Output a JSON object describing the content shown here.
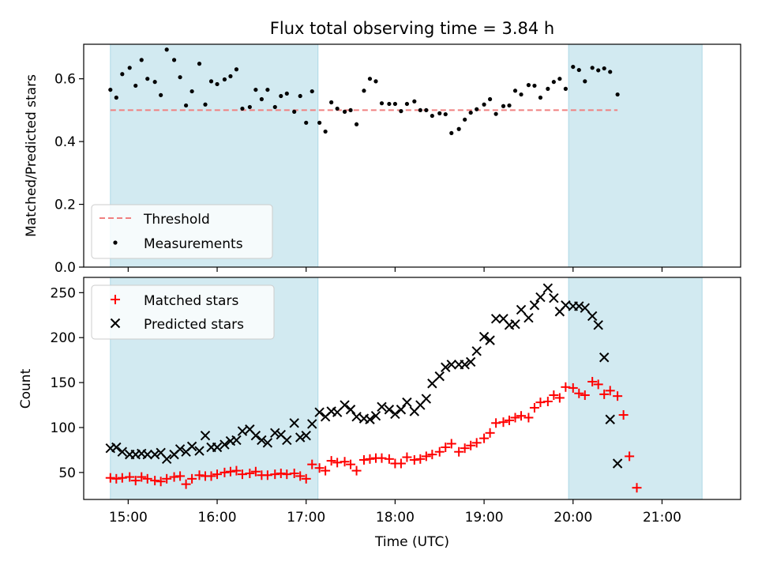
{
  "chart_data": [
    {
      "type": "scatter",
      "title": "Flux total observing time = 3.84 h",
      "ylabel": "Matched/Predicted stars",
      "xlabel": "",
      "xlim": [
        "14:30",
        "21:53"
      ],
      "ylim": [
        0,
        0.71
      ],
      "yticks": [
        0.0,
        0.2,
        0.4,
        0.6
      ],
      "ytick_labels": [
        "0.0",
        "0.2",
        "0.4",
        "0.6"
      ],
      "legend": {
        "position": "lower-left",
        "entries": [
          "Threshold",
          "Measurements"
        ]
      },
      "threshold": {
        "name": "Threshold",
        "value": 0.5,
        "color": "#f08080"
      },
      "shaded_intervals": [
        [
          "14:48",
          "17:08"
        ],
        [
          "19:57",
          "21:27"
        ]
      ],
      "shade_color": "#add8e6",
      "series": [
        {
          "name": "Measurements",
          "color": "#000000",
          "marker": "dot",
          "points": [
            [
              "14:48",
              0.565
            ],
            [
              "14:52",
              0.54
            ],
            [
              "14:56",
              0.615
            ],
            [
              "15:01",
              0.635
            ],
            [
              "15:05",
              0.578
            ],
            [
              "15:09",
              0.66
            ],
            [
              "15:13",
              0.6
            ],
            [
              "15:18",
              0.59
            ],
            [
              "15:22",
              0.548
            ],
            [
              "15:26",
              0.693
            ],
            [
              "15:31",
              0.66
            ],
            [
              "15:35",
              0.605
            ],
            [
              "15:39",
              0.515
            ],
            [
              "15:43",
              0.56
            ],
            [
              "15:48",
              0.648
            ],
            [
              "15:52",
              0.518
            ],
            [
              "15:56",
              0.592
            ],
            [
              "16:00",
              0.583
            ],
            [
              "16:05",
              0.598
            ],
            [
              "16:09",
              0.608
            ],
            [
              "16:13",
              0.63
            ],
            [
              "16:17",
              0.505
            ],
            [
              "16:22",
              0.51
            ],
            [
              "16:26",
              0.565
            ],
            [
              "16:30",
              0.535
            ],
            [
              "16:34",
              0.565
            ],
            [
              "16:39",
              0.51
            ],
            [
              "16:43",
              0.545
            ],
            [
              "16:47",
              0.553
            ],
            [
              "16:52",
              0.495
            ],
            [
              "16:56",
              0.545
            ],
            [
              "17:00",
              0.46
            ],
            [
              "17:04",
              0.56
            ],
            [
              "17:09",
              0.46
            ],
            [
              "17:13",
              0.432
            ],
            [
              "17:17",
              0.525
            ],
            [
              "17:21",
              0.505
            ],
            [
              "17:26",
              0.495
            ],
            [
              "17:30",
              0.5
            ],
            [
              "17:34",
              0.455
            ],
            [
              "17:39",
              0.562
            ],
            [
              "17:43",
              0.6
            ],
            [
              "17:47",
              0.592
            ],
            [
              "17:51",
              0.522
            ],
            [
              "17:56",
              0.52
            ],
            [
              "18:00",
              0.52
            ],
            [
              "18:04",
              0.497
            ],
            [
              "18:08",
              0.52
            ],
            [
              "18:13",
              0.528
            ],
            [
              "18:17",
              0.5
            ],
            [
              "18:21",
              0.5
            ],
            [
              "18:25",
              0.482
            ],
            [
              "18:30",
              0.49
            ],
            [
              "18:34",
              0.487
            ],
            [
              "18:38",
              0.427
            ],
            [
              "18:43",
              0.44
            ],
            [
              "18:47",
              0.47
            ],
            [
              "18:51",
              0.492
            ],
            [
              "18:55",
              0.503
            ],
            [
              "19:00",
              0.518
            ],
            [
              "19:04",
              0.535
            ],
            [
              "19:08",
              0.488
            ],
            [
              "19:13",
              0.513
            ],
            [
              "19:17",
              0.515
            ],
            [
              "19:21",
              0.562
            ],
            [
              "19:25",
              0.55
            ],
            [
              "19:30",
              0.58
            ],
            [
              "19:34",
              0.578
            ],
            [
              "19:38",
              0.54
            ],
            [
              "19:43",
              0.568
            ],
            [
              "19:47",
              0.59
            ],
            [
              "19:51",
              0.6
            ],
            [
              "19:55",
              0.568
            ],
            [
              "20:00",
              0.638
            ],
            [
              "20:04",
              0.628
            ],
            [
              "20:08",
              0.592
            ],
            [
              "20:13",
              0.635
            ],
            [
              "20:17",
              0.627
            ],
            [
              "20:21",
              0.633
            ],
            [
              "20:25",
              0.622
            ],
            [
              "20:30",
              0.55
            ]
          ]
        }
      ]
    },
    {
      "type": "scatter",
      "xlabel": "Time (UTC)",
      "ylabel": "Count",
      "xlim": [
        "14:30",
        "21:53"
      ],
      "ylim": [
        20,
        267
      ],
      "xticks": [
        "15:00",
        "16:00",
        "17:00",
        "18:00",
        "19:00",
        "20:00",
        "21:00"
      ],
      "yticks": [
        50,
        100,
        150,
        200,
        250
      ],
      "legend": {
        "position": "top-left",
        "entries": [
          "Matched stars",
          "Predicted stars"
        ]
      },
      "shaded_intervals": [
        [
          "14:48",
          "17:08"
        ],
        [
          "19:57",
          "21:27"
        ]
      ],
      "shade_color": "#add8e6",
      "series": [
        {
          "name": "Matched stars",
          "color": "#ff0000",
          "marker": "plus",
          "points": [
            [
              "14:48",
              44
            ],
            [
              "14:52",
              43
            ],
            [
              "14:56",
              44
            ],
            [
              "15:01",
              45
            ],
            [
              "15:05",
              41
            ],
            [
              "15:09",
              45
            ],
            [
              "15:13",
              43
            ],
            [
              "15:18",
              41
            ],
            [
              "15:22",
              40
            ],
            [
              "15:26",
              43
            ],
            [
              "15:31",
              45
            ],
            [
              "15:35",
              46
            ],
            [
              "15:39",
              37
            ],
            [
              "15:43",
              43
            ],
            [
              "15:48",
              47
            ],
            [
              "15:52",
              46
            ],
            [
              "15:56",
              46
            ],
            [
              "16:00",
              48
            ],
            [
              "16:05",
              50
            ],
            [
              "16:09",
              51
            ],
            [
              "16:13",
              52
            ],
            [
              "16:17",
              48
            ],
            [
              "16:22",
              49
            ],
            [
              "16:26",
              51
            ],
            [
              "16:30",
              47
            ],
            [
              "16:34",
              47
            ],
            [
              "16:39",
              48
            ],
            [
              "16:43",
              49
            ],
            [
              "16:47",
              48
            ],
            [
              "16:52",
              49
            ],
            [
              "16:56",
              46
            ],
            [
              "17:00",
              43
            ],
            [
              "17:04",
              59
            ],
            [
              "17:09",
              55
            ],
            [
              "17:13",
              52
            ],
            [
              "17:17",
              63
            ],
            [
              "17:21",
              61
            ],
            [
              "17:26",
              62
            ],
            [
              "17:30",
              59
            ],
            [
              "17:34",
              52
            ],
            [
              "17:39",
              64
            ],
            [
              "17:43",
              65
            ],
            [
              "17:47",
              66
            ],
            [
              "17:51",
              66
            ],
            [
              "17:56",
              65
            ],
            [
              "18:00",
              60
            ],
            [
              "18:04",
              60
            ],
            [
              "18:08",
              67
            ],
            [
              "18:13",
              64
            ],
            [
              "18:17",
              65
            ],
            [
              "18:21",
              68
            ],
            [
              "18:25",
              70
            ],
            [
              "18:30",
              73
            ],
            [
              "18:34",
              78
            ],
            [
              "18:38",
              82
            ],
            [
              "18:43",
              73
            ],
            [
              "18:47",
              77
            ],
            [
              "18:51",
              80
            ],
            [
              "18:55",
              83
            ],
            [
              "19:00",
              88
            ],
            [
              "19:04",
              94
            ],
            [
              "19:08",
              105
            ],
            [
              "19:13",
              106
            ],
            [
              "19:17",
              108
            ],
            [
              "19:21",
              111
            ],
            [
              "19:25",
              113
            ],
            [
              "19:30",
              111
            ],
            [
              "19:34",
              122
            ],
            [
              "19:38",
              128
            ],
            [
              "19:43",
              129
            ],
            [
              "19:47",
              136
            ],
            [
              "19:51",
              133
            ],
            [
              "19:55",
              145
            ],
            [
              "20:00",
              144
            ],
            [
              "20:04",
              138
            ],
            [
              "20:08",
              136
            ],
            [
              "20:13",
              151
            ],
            [
              "20:17",
              148
            ],
            [
              "20:21",
              137
            ],
            [
              "20:25",
              141
            ],
            [
              "20:30",
              135
            ],
            [
              "20:34",
              114
            ],
            [
              "20:38",
              68
            ],
            [
              "20:43",
              33
            ]
          ]
        },
        {
          "name": "Predicted stars",
          "color": "#000000",
          "marker": "x",
          "points": [
            [
              "14:48",
              77
            ],
            [
              "14:52",
              78
            ],
            [
              "14:56",
              73
            ],
            [
              "15:01",
              70
            ],
            [
              "15:05",
              70
            ],
            [
              "15:09",
              71
            ],
            [
              "15:13",
              70
            ],
            [
              "15:18",
              70
            ],
            [
              "15:22",
              72
            ],
            [
              "15:26",
              65
            ],
            [
              "15:31",
              70
            ],
            [
              "15:35",
              76
            ],
            [
              "15:39",
              73
            ],
            [
              "15:43",
              79
            ],
            [
              "15:48",
              74
            ],
            [
              "15:52",
              91
            ],
            [
              "15:56",
              78
            ],
            [
              "16:00",
              78
            ],
            [
              "16:05",
              81
            ],
            [
              "16:09",
              85
            ],
            [
              "16:13",
              86
            ],
            [
              "16:17",
              96
            ],
            [
              "16:22",
              98
            ],
            [
              "16:26",
              91
            ],
            [
              "16:30",
              86
            ],
            [
              "16:34",
              83
            ],
            [
              "16:39",
              94
            ],
            [
              "16:43",
              92
            ],
            [
              "16:47",
              86
            ],
            [
              "16:52",
              105
            ],
            [
              "16:56",
              89
            ],
            [
              "17:00",
              91
            ],
            [
              "17:04",
              104
            ],
            [
              "17:09",
              117
            ],
            [
              "17:13",
              112
            ],
            [
              "17:17",
              118
            ],
            [
              "17:21",
              117
            ],
            [
              "17:26",
              125
            ],
            [
              "17:30",
              120
            ],
            [
              "17:34",
              112
            ],
            [
              "17:39",
              110
            ],
            [
              "17:43",
              109
            ],
            [
              "17:47",
              113
            ],
            [
              "17:51",
              123
            ],
            [
              "17:56",
              120
            ],
            [
              "18:00",
              115
            ],
            [
              "18:04",
              120
            ],
            [
              "18:08",
              128
            ],
            [
              "18:13",
              118
            ],
            [
              "18:17",
              125
            ],
            [
              "18:21",
              132
            ],
            [
              "18:25",
              149
            ],
            [
              "18:30",
              157
            ],
            [
              "18:34",
              167
            ],
            [
              "18:38",
              170
            ],
            [
              "18:43",
              170
            ],
            [
              "18:47",
              170
            ],
            [
              "18:51",
              173
            ],
            [
              "18:55",
              185
            ],
            [
              "19:00",
              201
            ],
            [
              "19:04",
              197
            ],
            [
              "19:08",
              221
            ],
            [
              "19:13",
              221
            ],
            [
              "19:17",
              214
            ],
            [
              "19:21",
              215
            ],
            [
              "19:25",
              231
            ],
            [
              "19:30",
              222
            ],
            [
              "19:34",
              236
            ],
            [
              "19:38",
              245
            ],
            [
              "19:43",
              255
            ],
            [
              "19:47",
              244
            ],
            [
              "19:51",
              229
            ],
            [
              "19:55",
              236
            ],
            [
              "20:00",
              235
            ],
            [
              "20:04",
              235
            ],
            [
              "20:08",
              233
            ],
            [
              "20:13",
              224
            ],
            [
              "20:17",
              214
            ],
            [
              "20:21",
              178
            ],
            [
              "20:25",
              109
            ],
            [
              "20:30",
              60
            ]
          ]
        }
      ]
    }
  ]
}
